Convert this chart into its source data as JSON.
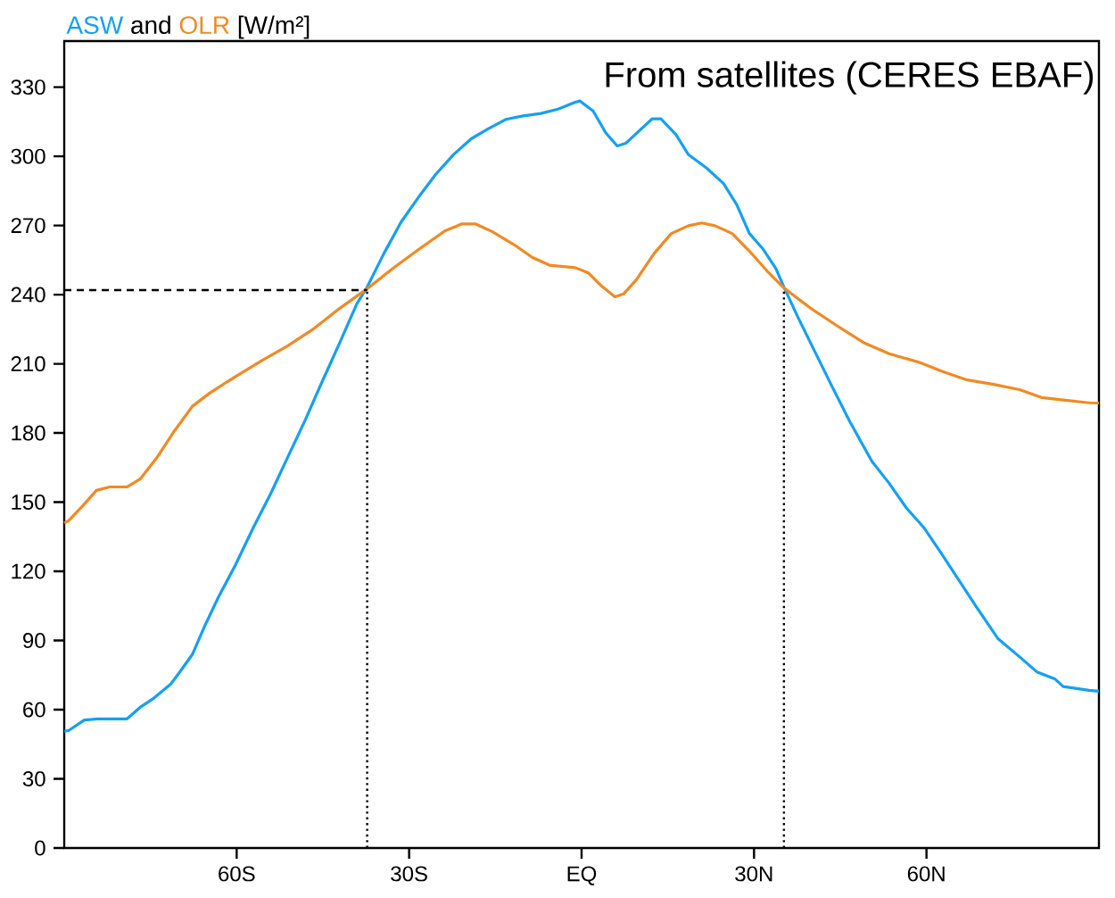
{
  "chart_data": {
    "type": "line",
    "title": "and",
    "ylabel": "[W/m²]",
    "annotations": [
      "From satellites (CERES EBAF)"
    ],
    "xlim": [
      -90,
      90
    ],
    "ylim": [
      0,
      350
    ],
    "xticks": [
      {
        "value": -60,
        "label": "60S"
      },
      {
        "value": -30,
        "label": "30S"
      },
      {
        "value": 0,
        "label": "EQ"
      },
      {
        "value": 30,
        "label": "30N"
      },
      {
        "value": 60,
        "label": "60N"
      }
    ],
    "yticks": [
      0,
      30,
      60,
      90,
      120,
      150,
      180,
      210,
      240,
      270,
      300,
      330
    ],
    "grid": false,
    "legend": false,
    "marker": "none",
    "line_style": "solid",
    "ref_lines": [
      {
        "axis": "y",
        "value": 242,
        "color": "#000000",
        "line_style": "dashed"
      },
      {
        "axis": "x",
        "value": -37.3,
        "color": "#000000",
        "line_style": "dotted"
      },
      {
        "axis": "x",
        "value": 35.2,
        "color": "#000000",
        "line_style": "dotted"
      }
    ],
    "series": [
      {
        "name": "ASW",
        "color": "#16a0f0",
        "x": [
          -90,
          -89.2,
          -86.5,
          -84.2,
          -81.4,
          -79.1,
          -78.4,
          -76.8,
          -74.4,
          -71.5,
          -70,
          -67.7,
          -65.5,
          -63.2,
          -60.2,
          -57.1,
          -54.1,
          -51.1,
          -48.1,
          -45.2,
          -42.1,
          -39.1,
          -37.3,
          -34.4,
          -31.4,
          -28.3,
          -25.3,
          -22.3,
          -19.2,
          -16.2,
          -13.2,
          -10.2,
          -7.1,
          -4.1,
          -1.1,
          -0.3,
          2,
          4.2,
          6.2,
          7.7,
          10,
          12.3,
          13.8,
          16.4,
          18.6,
          21.7,
          24.7,
          27,
          29.2,
          31.5,
          33.8,
          35.2,
          37.6,
          40.6,
          43.6,
          46.7,
          50.5,
          53.5,
          56.5,
          59.5,
          62.6,
          65.6,
          68.6,
          72.4,
          76.2,
          79.2,
          82.3,
          83.8,
          88.3,
          90
        ],
        "values": [
          50.6,
          51,
          55.5,
          56,
          56,
          56,
          57.5,
          61,
          65,
          71,
          76,
          84,
          96.6,
          108.7,
          122.8,
          139,
          153.6,
          169.6,
          185.5,
          201.9,
          219,
          236,
          243.3,
          257.8,
          271.5,
          282.5,
          292.4,
          300.7,
          307.6,
          312,
          316,
          317.5,
          318.6,
          320.5,
          323.5,
          324,
          319.7,
          310.2,
          304.5,
          305.7,
          311,
          316.3,
          316.3,
          309.5,
          300.7,
          295,
          288.2,
          279,
          266.5,
          260,
          251.3,
          243.3,
          230.4,
          215.2,
          200,
          184.8,
          167.7,
          158.2,
          147.5,
          139.1,
          127.7,
          116.3,
          104.9,
          90.9,
          82.9,
          76.4,
          73.4,
          70,
          68.4,
          68
        ]
      },
      {
        "name": "OLR",
        "color": "#f08a24",
        "x": [
          -90,
          -89.2,
          -86.7,
          -84.4,
          -82.1,
          -79.1,
          -76.8,
          -73.8,
          -70.8,
          -67.7,
          -64.7,
          -60.2,
          -55.6,
          -51.1,
          -46.5,
          -42,
          -37.3,
          -32.9,
          -28.3,
          -23.8,
          -20.8,
          -18.5,
          -15.5,
          -11.7,
          -8.6,
          -5.6,
          -1.1,
          1.2,
          3.5,
          5.8,
          7.3,
          9.5,
          12.6,
          15.6,
          18.6,
          20.9,
          23.2,
          26.2,
          29.2,
          32.3,
          35.2,
          39.8,
          44.4,
          49.2,
          53.5,
          58.8,
          62.6,
          67.1,
          71.7,
          76.2,
          80,
          83.8,
          88.3,
          90
        ],
        "values": [
          141,
          142,
          148.6,
          155.1,
          156.6,
          156.6,
          160,
          169.6,
          181,
          191.6,
          197.3,
          204.5,
          211.4,
          217.8,
          225.4,
          234.2,
          242.6,
          251.3,
          259.7,
          267.6,
          270.7,
          270.7,
          267.3,
          261.6,
          256.2,
          252.8,
          251.7,
          249.4,
          243.7,
          239.1,
          240.3,
          246.4,
          257.8,
          266.5,
          269.9,
          271.1,
          269.9,
          266.5,
          258.9,
          250.2,
          242.9,
          234.2,
          226.6,
          219,
          214.4,
          210.6,
          206.8,
          203,
          201.1,
          198.8,
          195.4,
          194.3,
          193.1,
          193
        ]
      }
    ]
  }
}
